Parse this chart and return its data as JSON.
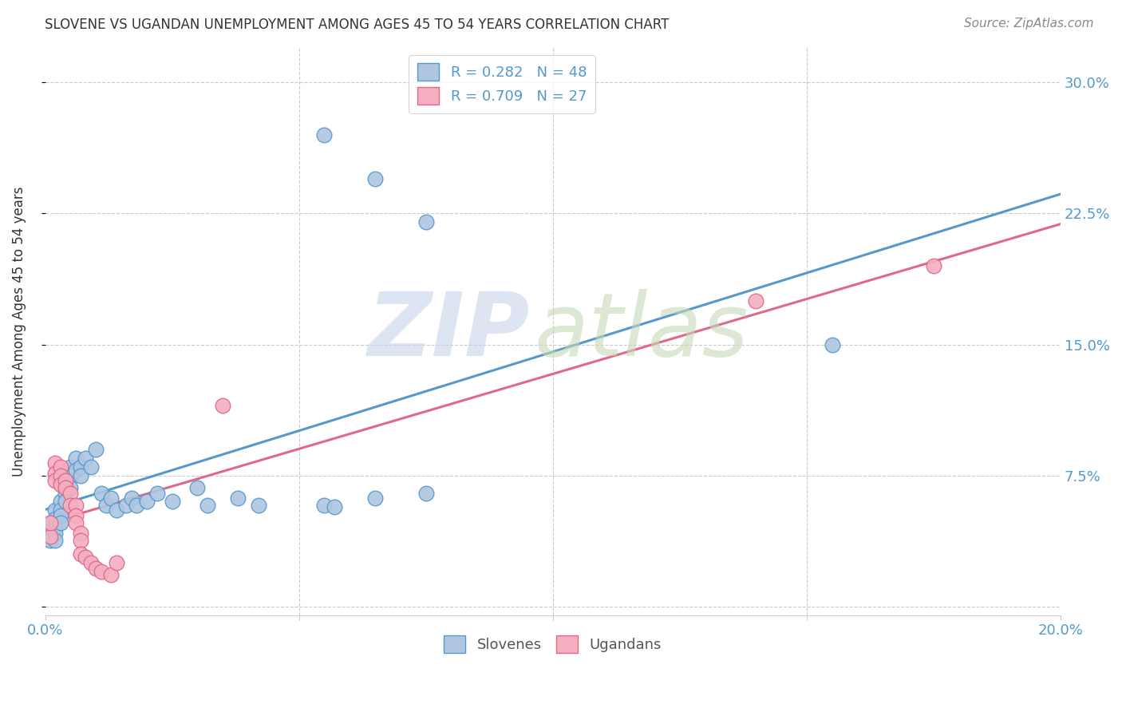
{
  "title": "SLOVENE VS UGANDAN UNEMPLOYMENT AMONG AGES 45 TO 54 YEARS CORRELATION CHART",
  "source": "Source: ZipAtlas.com",
  "ylabel": "Unemployment Among Ages 45 to 54 years",
  "xlim": [
    0.0,
    0.2
  ],
  "ylim": [
    -0.005,
    0.32
  ],
  "x_ticks": [
    0.0,
    0.05,
    0.1,
    0.15,
    0.2
  ],
  "x_tick_labels": [
    "0.0%",
    "",
    "",
    "",
    "20.0%"
  ],
  "y_ticks": [
    0.0,
    0.075,
    0.15,
    0.225,
    0.3
  ],
  "y_tick_labels": [
    "",
    "7.5%",
    "15.0%",
    "22.5%",
    "30.0%"
  ],
  "slovene_color": "#aec6e0",
  "ugandan_color": "#f4afc0",
  "slovene_line_color": "#5599cc",
  "ugandan_line_color": "#e06888",
  "legend_r1": "R = 0.282",
  "legend_n1": "N = 48",
  "legend_r2": "R = 0.709",
  "legend_n2": "N = 27",
  "slovene_points": [
    [
      0.001,
      0.048
    ],
    [
      0.001,
      0.043
    ],
    [
      0.001,
      0.04
    ],
    [
      0.001,
      0.038
    ],
    [
      0.002,
      0.055
    ],
    [
      0.002,
      0.05
    ],
    [
      0.002,
      0.045
    ],
    [
      0.002,
      0.042
    ],
    [
      0.002,
      0.038
    ],
    [
      0.003,
      0.06
    ],
    [
      0.003,
      0.055
    ],
    [
      0.003,
      0.052
    ],
    [
      0.003,
      0.048
    ],
    [
      0.004,
      0.07
    ],
    [
      0.004,
      0.065
    ],
    [
      0.004,
      0.06
    ],
    [
      0.005,
      0.08
    ],
    [
      0.005,
      0.075
    ],
    [
      0.005,
      0.068
    ],
    [
      0.006,
      0.085
    ],
    [
      0.006,
      0.078
    ],
    [
      0.007,
      0.08
    ],
    [
      0.007,
      0.075
    ],
    [
      0.008,
      0.085
    ],
    [
      0.009,
      0.08
    ],
    [
      0.01,
      0.09
    ],
    [
      0.011,
      0.065
    ],
    [
      0.012,
      0.058
    ],
    [
      0.013,
      0.062
    ],
    [
      0.014,
      0.055
    ],
    [
      0.016,
      0.058
    ],
    [
      0.017,
      0.062
    ],
    [
      0.018,
      0.058
    ],
    [
      0.02,
      0.06
    ],
    [
      0.022,
      0.065
    ],
    [
      0.025,
      0.06
    ],
    [
      0.03,
      0.068
    ],
    [
      0.032,
      0.058
    ],
    [
      0.038,
      0.062
    ],
    [
      0.042,
      0.058
    ],
    [
      0.055,
      0.058
    ],
    [
      0.057,
      0.057
    ],
    [
      0.065,
      0.062
    ],
    [
      0.075,
      0.065
    ],
    [
      0.055,
      0.27
    ],
    [
      0.065,
      0.245
    ],
    [
      0.075,
      0.22
    ],
    [
      0.155,
      0.15
    ]
  ],
  "ugandan_points": [
    [
      0.001,
      0.04
    ],
    [
      0.001,
      0.048
    ],
    [
      0.002,
      0.082
    ],
    [
      0.002,
      0.076
    ],
    [
      0.002,
      0.072
    ],
    [
      0.003,
      0.08
    ],
    [
      0.003,
      0.075
    ],
    [
      0.003,
      0.07
    ],
    [
      0.004,
      0.072
    ],
    [
      0.004,
      0.068
    ],
    [
      0.005,
      0.065
    ],
    [
      0.005,
      0.058
    ],
    [
      0.006,
      0.058
    ],
    [
      0.006,
      0.052
    ],
    [
      0.006,
      0.048
    ],
    [
      0.007,
      0.042
    ],
    [
      0.007,
      0.038
    ],
    [
      0.007,
      0.03
    ],
    [
      0.008,
      0.028
    ],
    [
      0.009,
      0.025
    ],
    [
      0.01,
      0.022
    ],
    [
      0.011,
      0.02
    ],
    [
      0.013,
      0.018
    ],
    [
      0.014,
      0.025
    ],
    [
      0.035,
      0.115
    ],
    [
      0.14,
      0.175
    ],
    [
      0.175,
      0.195
    ]
  ]
}
